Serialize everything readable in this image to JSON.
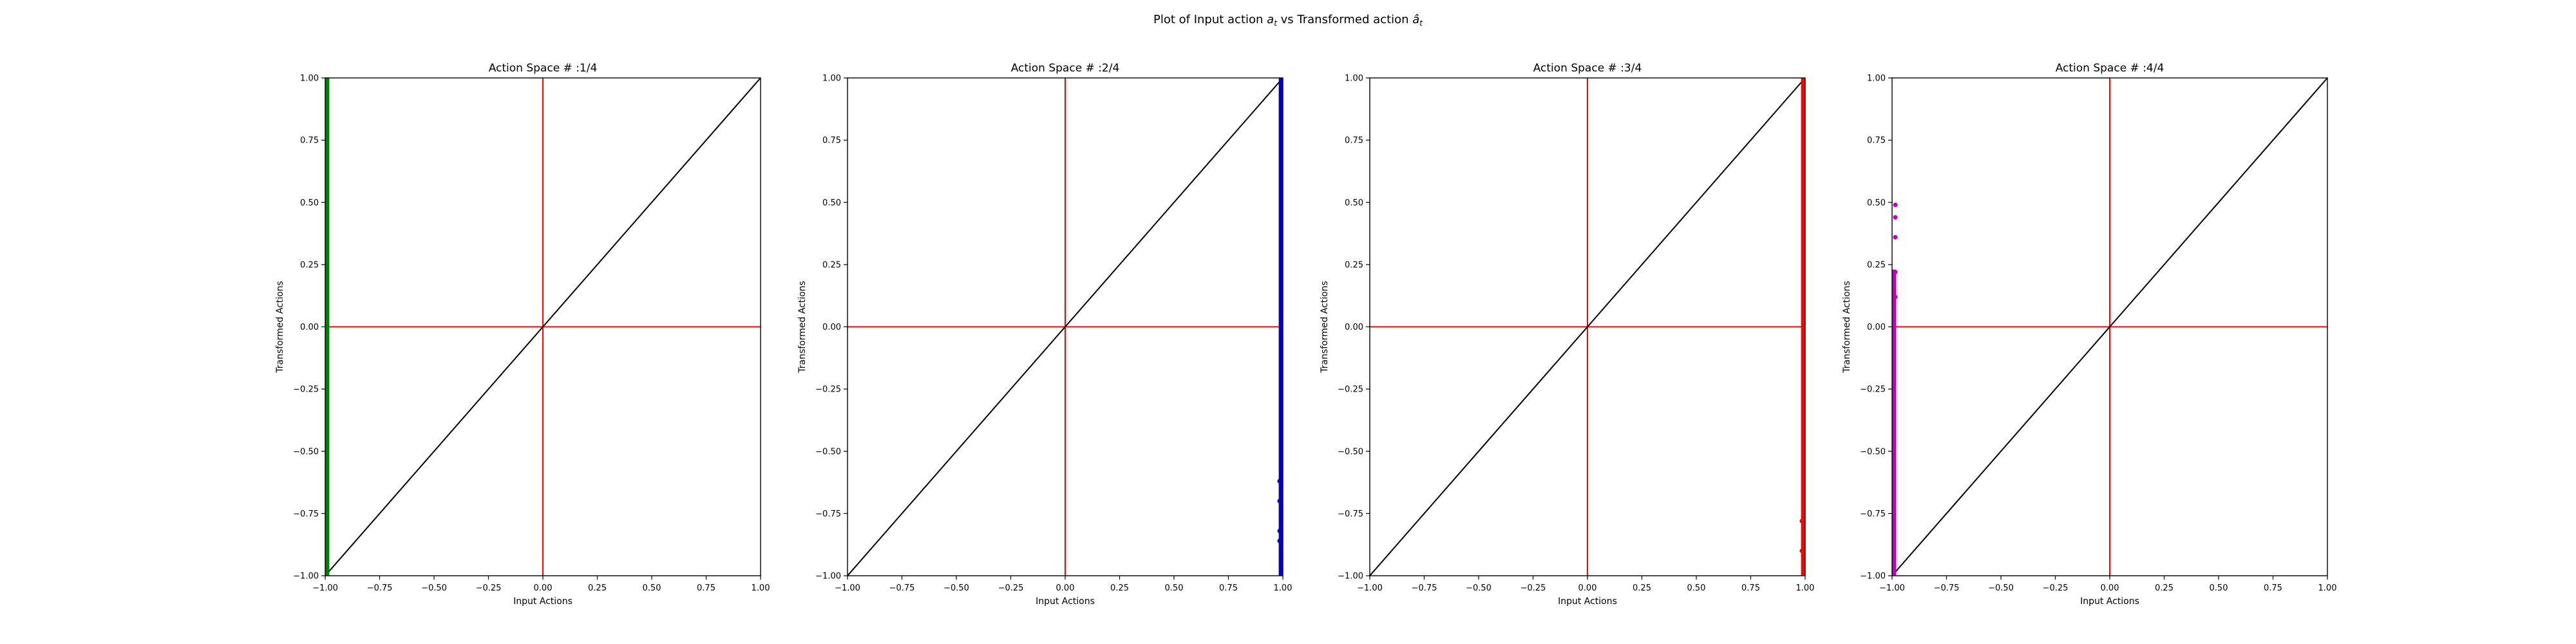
{
  "figure": {
    "suptitle": "Plot of Input action $a_t$ vs Transformed action $\\hat{a}_t$",
    "suptitle_parts": {
      "prefix": "Plot of Input action ",
      "sym1_base": "a",
      "sym1_sub": "t",
      "middle": " vs Transformed action ",
      "sym2_base": "â",
      "sym2_sub": "t"
    }
  },
  "chart_data": [
    {
      "type": "scatter",
      "title": "Action Space # :1/4",
      "xlabel": "Input Actions",
      "ylabel": "Transformed Actions",
      "xlim": [
        -1.0,
        1.0
      ],
      "ylim": [
        -1.0,
        1.0
      ],
      "xticks": [
        "−1.00",
        "−0.75",
        "−0.50",
        "−0.25",
        "0.00",
        "0.25",
        "0.50",
        "0.75",
        "1.00"
      ],
      "yticks": [
        "−1.00",
        "−0.75",
        "−0.50",
        "−0.25",
        "0.00",
        "0.25",
        "0.50",
        "0.75",
        "1.00"
      ],
      "grid": false,
      "reference_lines": {
        "x": 0.0,
        "y": 0.0,
        "color": "#ff0000"
      },
      "identity_line": {
        "from": [
          -1.0,
          -1.0
        ],
        "to": [
          1.0,
          1.0
        ],
        "color": "#000000"
      },
      "series": [
        {
          "color": "#007f00",
          "marker": "dot",
          "x": -0.99,
          "y_from": -1.0,
          "y_to": 1.0,
          "extra_points": []
        }
      ]
    },
    {
      "type": "scatter",
      "title": "Action Space # :2/4",
      "xlabel": "Input Actions",
      "ylabel": "Transformed Actions",
      "xlim": [
        -1.0,
        1.0
      ],
      "ylim": [
        -1.0,
        1.0
      ],
      "xticks": [
        "−1.00",
        "−0.75",
        "−0.50",
        "−0.25",
        "0.00",
        "0.25",
        "0.50",
        "0.75",
        "1.00"
      ],
      "yticks": [
        "−1.00",
        "−0.75",
        "−0.50",
        "−0.25",
        "0.00",
        "0.25",
        "0.50",
        "0.75",
        "1.00"
      ],
      "grid": false,
      "reference_lines": {
        "x": 0.0,
        "y": 0.0,
        "color": "#ff0000"
      },
      "identity_line": {
        "from": [
          -1.0,
          -1.0
        ],
        "to": [
          1.0,
          1.0
        ],
        "color": "#000000"
      },
      "series": [
        {
          "color": "#0000bf",
          "marker": "dot",
          "x": 0.99,
          "y_from": -1.0,
          "y_to": 1.0,
          "extra_points": [
            [
              0.985,
              -0.62
            ],
            [
              0.985,
              -0.7
            ],
            [
              0.985,
              -0.82
            ],
            [
              0.985,
              -0.86
            ]
          ]
        }
      ]
    },
    {
      "type": "scatter",
      "title": "Action Space # :3/4",
      "xlabel": "Input Actions",
      "ylabel": "Transformed Actions",
      "xlim": [
        -1.0,
        1.0
      ],
      "ylim": [
        -1.0,
        1.0
      ],
      "xticks": [
        "−1.00",
        "−0.75",
        "−0.50",
        "−0.25",
        "0.00",
        "0.25",
        "0.50",
        "0.75",
        "1.00"
      ],
      "yticks": [
        "−1.00",
        "−0.75",
        "−0.50",
        "−0.25",
        "0.00",
        "0.25",
        "0.50",
        "0.75",
        "1.00"
      ],
      "grid": false,
      "reference_lines": {
        "x": 0.0,
        "y": 0.0,
        "color": "#ff0000"
      },
      "identity_line": {
        "from": [
          -1.0,
          -1.0
        ],
        "to": [
          1.0,
          1.0
        ],
        "color": "#000000"
      },
      "series": [
        {
          "color": "#ff0000",
          "marker": "dot",
          "x": 0.99,
          "y_from": -1.0,
          "y_to": 1.0,
          "extra_points": [
            [
              0.985,
              -0.78
            ],
            [
              0.985,
              -0.9
            ]
          ]
        }
      ]
    },
    {
      "type": "scatter",
      "title": "Action Space # :4/4",
      "xlabel": "Input Actions",
      "ylabel": "Transformed Actions",
      "xlim": [
        -1.0,
        1.0
      ],
      "ylim": [
        -1.0,
        1.0
      ],
      "xticks": [
        "−1.00",
        "−0.75",
        "−0.50",
        "−0.25",
        "0.00",
        "0.25",
        "0.50",
        "0.75",
        "1.00"
      ],
      "yticks": [
        "−1.00",
        "−0.75",
        "−0.50",
        "−0.25",
        "0.00",
        "0.25",
        "0.50",
        "0.75",
        "1.00"
      ],
      "grid": false,
      "reference_lines": {
        "x": 0.0,
        "y": 0.0,
        "color": "#ff0000"
      },
      "identity_line": {
        "from": [
          -1.0,
          -1.0
        ],
        "to": [
          1.0,
          1.0
        ],
        "color": "#000000"
      },
      "series": [
        {
          "color": "#bf00bf",
          "marker": "dot",
          "x": -0.99,
          "y_from": -1.0,
          "y_to": 0.23,
          "extra_points": [
            [
              -0.985,
              0.49
            ],
            [
              -0.985,
              0.44
            ],
            [
              -0.985,
              0.36
            ],
            [
              -0.985,
              0.22
            ],
            [
              -0.985,
              0.12
            ]
          ]
        }
      ]
    }
  ]
}
